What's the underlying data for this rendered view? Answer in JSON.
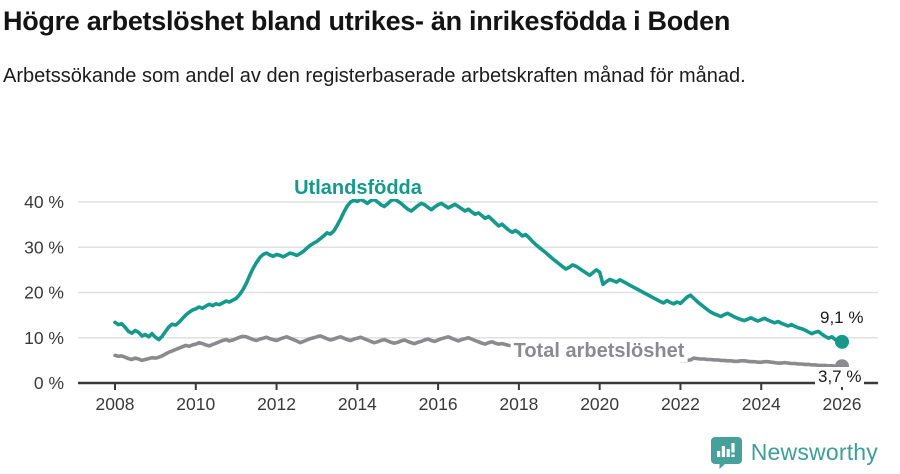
{
  "header": {
    "title": "Högre arbetslöshet bland utrikes- än inrikesfödda i Boden",
    "subtitle": "Arbetssökande som andel av den registerbaserade arbetskraften månad för månad."
  },
  "footer": {
    "brand": "Newsworthy",
    "logo_icon": "bar-chart-speech-bubble-icon"
  },
  "colors": {
    "series_teal": "#14998c",
    "series_gray": "#8b8b8f",
    "axis": "#3a3a3a",
    "grid": "#e1e1e1",
    "text": "#1c1c1c",
    "brand_teal": "#3d9f98"
  },
  "chart_data": {
    "type": "line",
    "title": "Högre arbetslöshet bland utrikes- än inrikesfödda i Boden",
    "subtitle": "Arbetssökande som andel av den registerbaserade arbetskraften månad för månad.",
    "grid": "horizontal",
    "legend_position": "inline-labels",
    "x_start_year": 2008,
    "x_end_year": 2026,
    "points_per_year": 12,
    "ylim": [
      0,
      44
    ],
    "xticks": [
      2008,
      2010,
      2012,
      2014,
      2016,
      2018,
      2020,
      2022,
      2024,
      2026
    ],
    "yticks": [
      {
        "value": 0,
        "label": "0 %"
      },
      {
        "value": 10,
        "label": "10 %"
      },
      {
        "value": 20,
        "label": "20 %"
      },
      {
        "value": 30,
        "label": "30 %"
      },
      {
        "value": 40,
        "label": "40 %"
      }
    ],
    "series": [
      {
        "name": "Utlandsfödda",
        "color": "#14998c",
        "end_label": "9,1 %",
        "end_value": 9.1,
        "values": [
          13.4,
          12.9,
          13.1,
          12.3,
          11.4,
          11.0,
          11.6,
          11.2,
          10.4,
          10.7,
          10.2,
          10.9,
          10.1,
          9.6,
          10.3,
          11.4,
          12.4,
          13.0,
          12.8,
          13.4,
          14.2,
          15.0,
          15.6,
          16.1,
          16.4,
          16.8,
          16.5,
          17.0,
          17.4,
          17.1,
          17.5,
          17.3,
          17.7,
          18.1,
          17.9,
          18.3,
          18.7,
          19.5,
          20.6,
          22.0,
          23.7,
          25.3,
          26.6,
          27.7,
          28.4,
          28.7,
          28.3,
          28.0,
          28.4,
          28.2,
          27.9,
          28.3,
          28.7,
          28.5,
          28.2,
          28.6,
          29.1,
          29.8,
          30.4,
          30.9,
          31.3,
          31.9,
          32.5,
          33.2,
          32.9,
          33.6,
          34.8,
          36.2,
          37.8,
          39.1,
          40.0,
          40.4,
          40.1,
          40.6,
          40.2,
          39.7,
          40.3,
          40.6,
          40.0,
          39.4,
          39.0,
          39.6,
          40.3,
          40.6,
          40.2,
          39.7,
          39.0,
          38.4,
          38.0,
          38.6,
          39.2,
          39.7,
          39.4,
          38.8,
          38.3,
          38.9,
          39.4,
          39.7,
          39.2,
          38.7,
          39.1,
          39.5,
          39.0,
          38.5,
          38.0,
          38.4,
          37.8,
          37.3,
          37.6,
          37.0,
          36.4,
          36.8,
          36.1,
          35.4,
          34.7,
          35.1,
          34.4,
          33.8,
          33.3,
          33.7,
          33.2,
          32.5,
          32.8,
          32.1,
          31.3,
          30.6,
          30.0,
          29.4,
          28.8,
          28.1,
          27.5,
          26.9,
          26.3,
          25.7,
          25.2,
          25.6,
          26.1,
          25.8,
          25.3,
          24.8,
          24.3,
          23.8,
          24.4,
          25.0,
          24.5,
          21.8,
          22.4,
          22.9,
          22.6,
          22.3,
          22.8,
          22.4,
          22.0,
          21.6,
          21.2,
          20.8,
          20.4,
          20.0,
          19.6,
          19.2,
          18.8,
          18.4,
          18.0,
          17.7,
          18.2,
          17.8,
          17.5,
          17.9,
          17.6,
          18.3,
          19.0,
          19.4,
          18.7,
          18.0,
          17.4,
          16.8,
          16.2,
          15.7,
          15.3,
          15.0,
          14.7,
          15.1,
          15.4,
          15.0,
          14.6,
          14.3,
          14.0,
          13.8,
          14.1,
          14.4,
          14.0,
          13.7,
          14.0,
          14.3,
          13.9,
          13.6,
          13.3,
          13.6,
          13.2,
          12.9,
          12.6,
          12.9,
          12.5,
          12.2,
          12.0,
          11.7,
          11.3,
          10.9,
          11.2,
          11.4,
          10.8,
          10.3,
          9.9,
          10.2,
          9.6,
          9.3,
          9.1
        ]
      },
      {
        "name": "Total arbetslöshet",
        "color": "#8b8b8f",
        "end_label": "3,7 %",
        "end_value": 3.7,
        "values": [
          6.1,
          5.9,
          6.0,
          5.7,
          5.4,
          5.2,
          5.5,
          5.3,
          5.0,
          5.2,
          5.4,
          5.6,
          5.5,
          5.7,
          6.0,
          6.4,
          6.8,
          7.1,
          7.4,
          7.7,
          8.0,
          8.3,
          8.1,
          8.4,
          8.6,
          8.9,
          8.7,
          8.4,
          8.2,
          8.5,
          8.8,
          9.1,
          9.4,
          9.6,
          9.3,
          9.5,
          9.8,
          10.1,
          10.3,
          10.2,
          9.9,
          9.6,
          9.4,
          9.7,
          9.9,
          10.1,
          9.8,
          9.6,
          9.4,
          9.7,
          10.0,
          10.2,
          9.9,
          9.6,
          9.3,
          8.9,
          9.2,
          9.5,
          9.8,
          10.0,
          10.2,
          10.4,
          10.1,
          9.8,
          9.5,
          9.7,
          10.0,
          10.2,
          9.9,
          9.6,
          9.4,
          9.7,
          9.9,
          10.1,
          9.8,
          9.5,
          9.2,
          8.9,
          9.1,
          9.4,
          9.6,
          9.3,
          9.0,
          8.8,
          9.0,
          9.3,
          9.5,
          9.2,
          8.9,
          8.7,
          9.0,
          9.2,
          9.5,
          9.7,
          9.4,
          9.2,
          9.5,
          9.8,
          10.0,
          10.2,
          9.9,
          9.6,
          9.3,
          9.6,
          9.8,
          10.0,
          9.7,
          9.4,
          9.1,
          8.8,
          8.6,
          8.9,
          9.1,
          8.8,
          8.6,
          8.7,
          8.5,
          8.3,
          8.2,
          8.4,
          8.2,
          8.0,
          7.9,
          7.7,
          7.6,
          7.4,
          7.3,
          7.2,
          7.0,
          6.9,
          6.8,
          6.7,
          6.6,
          6.5,
          6.4,
          6.3,
          6.2,
          6.2,
          6.1,
          6.0,
          6.0,
          5.9,
          5.9,
          5.8,
          5.9,
          6.1,
          6.3,
          6.4,
          6.3,
          6.2,
          6.1,
          6.0,
          5.9,
          5.8,
          5.7,
          5.7,
          5.6,
          5.6,
          5.5,
          5.5,
          5.4,
          5.4,
          5.3,
          5.3,
          5.2,
          5.2,
          5.1,
          5.1,
          5.0,
          5.0,
          5.0,
          5.1,
          5.5,
          5.4,
          5.3,
          5.3,
          5.2,
          5.2,
          5.1,
          5.1,
          5.0,
          5.0,
          4.9,
          4.9,
          4.8,
          4.8,
          4.9,
          4.9,
          4.8,
          4.7,
          4.7,
          4.6,
          4.6,
          4.7,
          4.7,
          4.6,
          4.5,
          4.4,
          4.4,
          4.5,
          4.4,
          4.3,
          4.3,
          4.2,
          4.2,
          4.1,
          4.1,
          4.0,
          4.0,
          3.9,
          3.9,
          3.9,
          3.8,
          3.8,
          3.7,
          3.7,
          3.7
        ]
      }
    ]
  }
}
